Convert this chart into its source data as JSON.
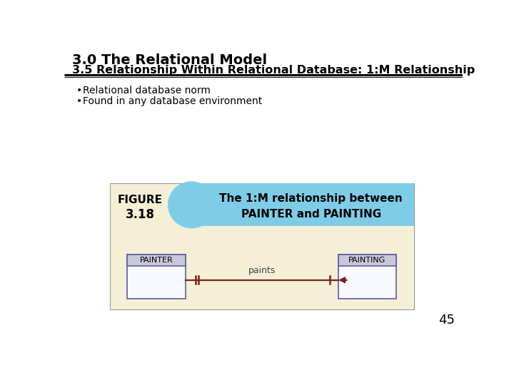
{
  "title1": "3.0 The Relational Model",
  "title2": "3.5 Relationship Within Relational Database: 1:M Relationship",
  "bullet1": "Relational database norm",
  "bullet2": "Found in any database environment",
  "figure_label_line1": "FIGURE",
  "figure_label_line2": "3.18",
  "figure_title_line1": "The 1:M relationship between",
  "figure_title_line2": "PAINTER and PAINTING",
  "entity1": "PAINTER",
  "entity2": "PAINTING",
  "relationship": "paints",
  "page_num": "45",
  "bg_color": "#ffffff",
  "figure_bg_color": "#f5f0d5",
  "figure_header_blue": "#7ecde8",
  "entity_border_color": "#5a5aaa",
  "entity_header_fill": "#c8c8d8",
  "entity_body_fill": "#f8f8ff",
  "arrow_color": "#7a2020",
  "title1_fontsize": 14,
  "title2_fontsize": 11.5,
  "bullet_fontsize": 10,
  "fig_label_fontsize": 11,
  "fig_title_fontsize": 11,
  "entity_label_fontsize": 8,
  "rel_label_fontsize": 9,
  "page_fontsize": 13
}
